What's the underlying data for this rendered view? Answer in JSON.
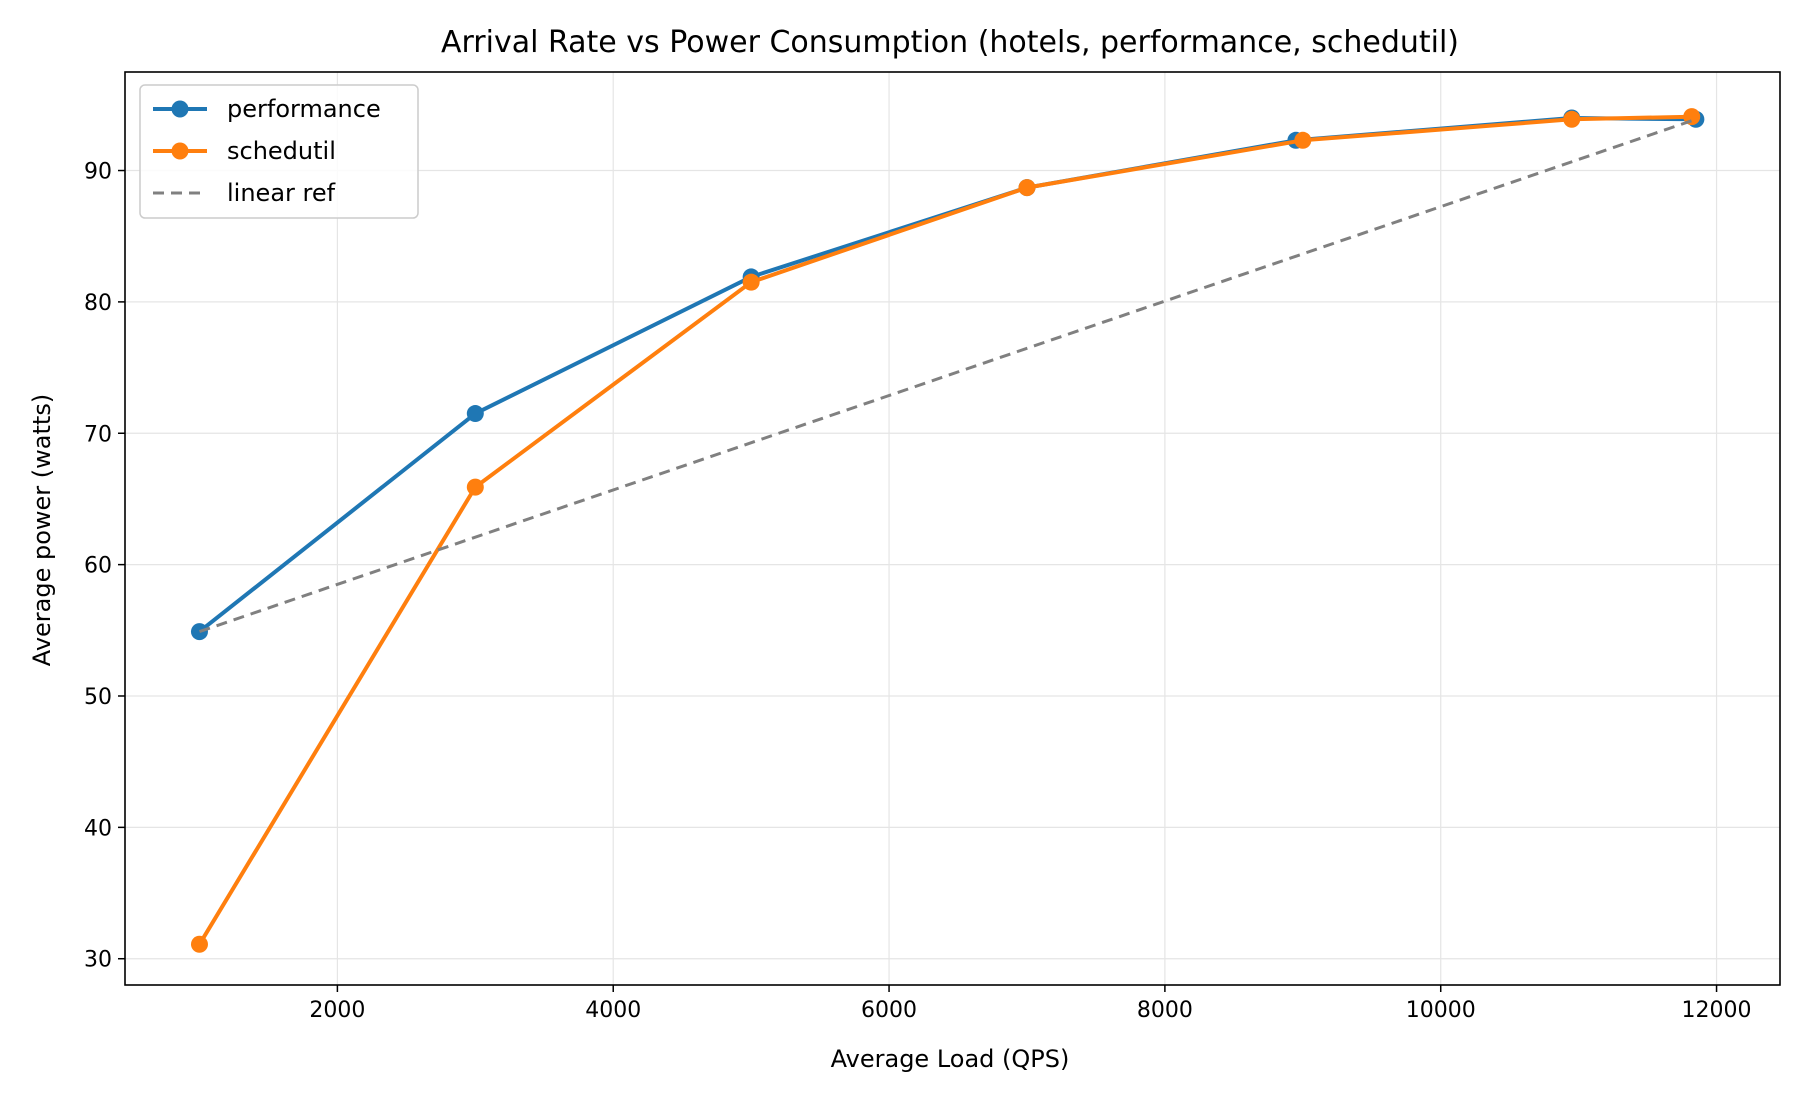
{
  "chart_data": {
    "type": "line",
    "title": "Arrival Rate vs Power Consumption (hotels, performance, schedutil)",
    "xlabel": "Average Load (QPS)",
    "ylabel": "Average power (watts)",
    "xlim": [
      460,
      12460
    ],
    "ylim": [
      28,
      97.5
    ],
    "xticks": [
      2000,
      4000,
      6000,
      8000,
      10000,
      12000
    ],
    "yticks": [
      30,
      40,
      50,
      60,
      70,
      80,
      90
    ],
    "grid": true,
    "legend_position": "upper-left",
    "series": [
      {
        "name": "performance",
        "color": "#1f77b4",
        "style": "solid",
        "marker": "circle",
        "x": [
          1000,
          3000,
          5000,
          7000,
          8950,
          10950,
          11850
        ],
        "y": [
          54.9,
          71.5,
          81.9,
          88.7,
          92.3,
          94.0,
          93.9
        ]
      },
      {
        "name": "schedutil",
        "color": "#ff7f0e",
        "style": "solid",
        "marker": "circle",
        "x": [
          1000,
          3000,
          5000,
          7000,
          9000,
          10950,
          11820
        ],
        "y": [
          31.1,
          65.9,
          81.5,
          88.7,
          92.3,
          93.9,
          94.1
        ]
      },
      {
        "name": "linear ref",
        "color": "#808080",
        "style": "dashed",
        "marker": "none",
        "x": [
          1000,
          11850
        ],
        "y": [
          54.9,
          93.9
        ]
      }
    ]
  }
}
